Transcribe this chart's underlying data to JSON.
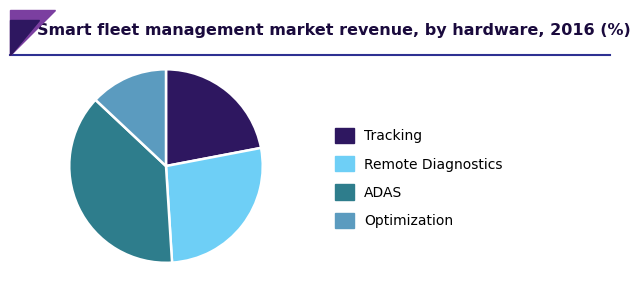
{
  "title": "Smart fleet management market revenue, by hardware, 2016 (%)",
  "labels": [
    "Tracking",
    "Remote Diagnostics",
    "ADAS",
    "Optimization"
  ],
  "values": [
    22,
    27,
    38,
    13
  ],
  "colors": [
    "#2e1760",
    "#6ecff6",
    "#2e7d8c",
    "#5b9bbf"
  ],
  "title_fontsize": 11.5,
  "legend_fontsize": 10,
  "background_color": "#ffffff",
  "header_line_color": "#2e3192",
  "startangle": 90,
  "corner_colors": [
    "#7b3fa0",
    "#2e1760"
  ],
  "title_color": "#1a0a3d"
}
